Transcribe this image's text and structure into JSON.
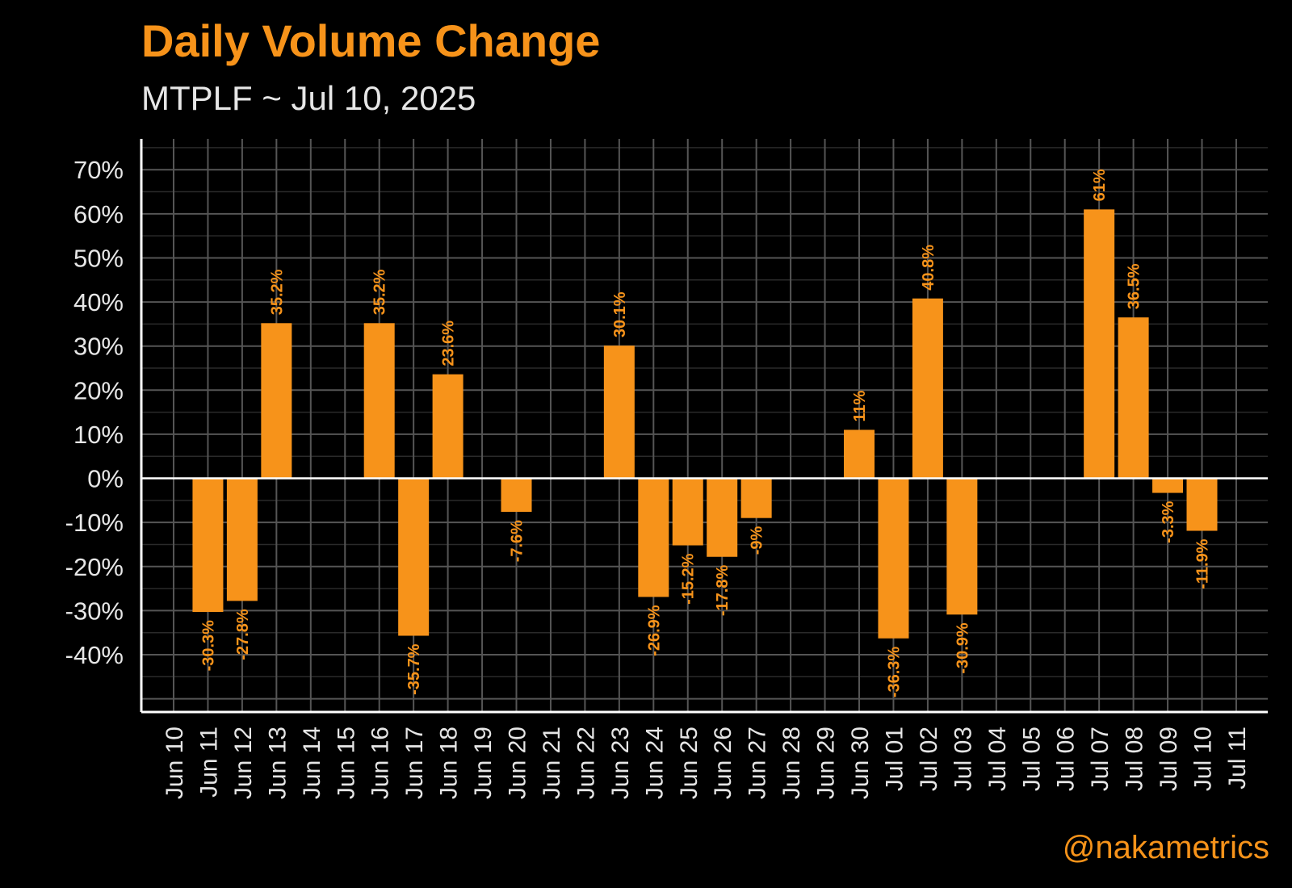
{
  "colors": {
    "background": "#000000",
    "accent": "#F7931A",
    "text": "#E6E6E6",
    "grid_major": "#555555",
    "grid_minor": "#2A2A2A",
    "axis": "#FFFFFF"
  },
  "chart_data": {
    "type": "bar",
    "title": "Daily Volume Change",
    "subtitle": "MTPLF ~ Jul 10, 2025",
    "xlabel": "",
    "ylabel": "",
    "ylim": [
      -53,
      77
    ],
    "y_ticks": [
      70,
      60,
      50,
      40,
      30,
      20,
      10,
      0,
      -10,
      -20,
      -30,
      -40
    ],
    "y_tick_labels": [
      "70%",
      "60%",
      "50%",
      "40%",
      "30%",
      "20%",
      "10%",
      "0%",
      "-10%",
      "-20%",
      "-30%",
      "-40%"
    ],
    "grid": true,
    "categories": [
      "Jun 10",
      "Jun 11",
      "Jun 12",
      "Jun 13",
      "Jun 14",
      "Jun 15",
      "Jun 16",
      "Jun 17",
      "Jun 18",
      "Jun 19",
      "Jun 20",
      "Jun 21",
      "Jun 22",
      "Jun 23",
      "Jun 24",
      "Jun 25",
      "Jun 26",
      "Jun 27",
      "Jun 28",
      "Jun 29",
      "Jun 30",
      "Jul 01",
      "Jul 02",
      "Jul 03",
      "Jul 04",
      "Jul 05",
      "Jul 06",
      "Jul 07",
      "Jul 08",
      "Jul 09",
      "Jul 10",
      "Jul 11"
    ],
    "values": [
      null,
      -30.3,
      -27.8,
      35.2,
      null,
      null,
      35.2,
      -35.7,
      23.6,
      null,
      -7.6,
      null,
      null,
      30.1,
      -26.9,
      -15.2,
      -17.8,
      -9,
      null,
      null,
      11,
      -36.3,
      40.8,
      -30.9,
      null,
      null,
      null,
      61,
      36.5,
      -3.3,
      -11.9,
      null
    ],
    "data_labels": [
      "",
      "-30.3%",
      "-27.8%",
      "35.2%",
      "",
      "",
      "35.2%",
      "-35.7%",
      "23.6%",
      "",
      "-7.6%",
      "",
      "",
      "30.1%",
      "-26.9%",
      "-15.2%",
      "-17.8%",
      "-9%",
      "",
      "",
      "11%",
      "-36.3%",
      "40.8%",
      "-30.9%",
      "",
      "",
      "",
      "61%",
      "36.5%",
      "-3.3%",
      "-11.9%",
      ""
    ]
  },
  "watermark": "@nakametrics"
}
